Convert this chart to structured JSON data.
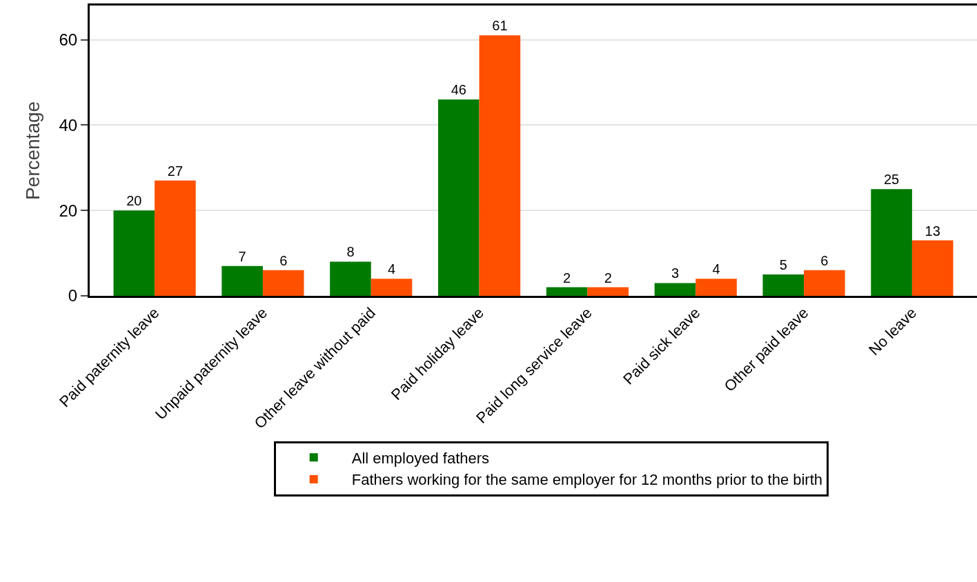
{
  "chart_data": {
    "type": "bar",
    "ylabel": "Percentage",
    "categories": [
      "Paid paternity leave",
      "Unpaid paternity leave",
      "Other leave without paid",
      "Paid holiday leave",
      "Paid long service leave",
      "Paid sick leave",
      "Other paid leave",
      "No leave"
    ],
    "series": [
      {
        "name": "All employed fathers",
        "color": "#007a00",
        "values": [
          20,
          7,
          8,
          46,
          2,
          3,
          5,
          25
        ]
      },
      {
        "name": "Fathers working for the same employer for 12 months prior to the birth",
        "color": "#ff5000",
        "values": [
          27,
          6,
          4,
          61,
          2,
          4,
          6,
          13
        ]
      }
    ],
    "ylim": [
      0,
      68
    ],
    "yticks": [
      0,
      20,
      40,
      60
    ],
    "grid": "y",
    "legend": "bottom",
    "data_labels": true
  }
}
